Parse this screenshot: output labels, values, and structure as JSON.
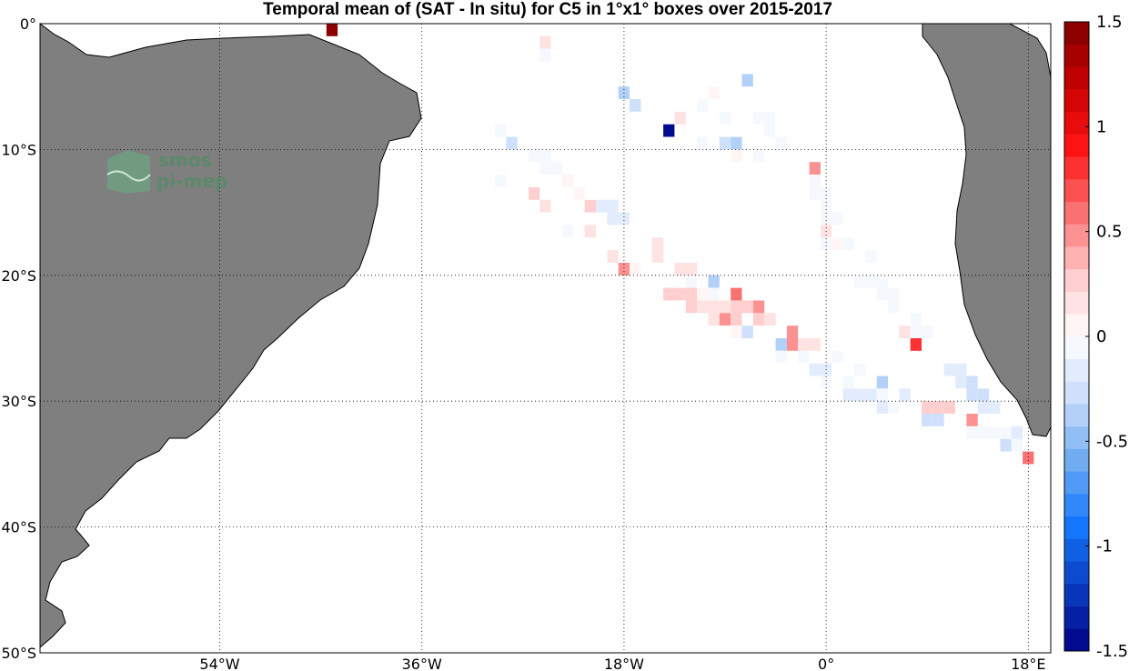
{
  "title": "Temporal mean of (SAT - In situ) for C5 in 1°x1° boxes over 2015-2017",
  "logo": {
    "line1": "smos",
    "line2": "pi-mep"
  },
  "map": {
    "lon_range": [
      -70,
      20
    ],
    "lat_range": [
      -50,
      0
    ],
    "land_color": "#7f7f7f",
    "grid": true,
    "lon_ticks": [
      {
        "value": -54,
        "label": "54°W"
      },
      {
        "value": -36,
        "label": "36°W"
      },
      {
        "value": -18,
        "label": "18°W"
      },
      {
        "value": 0,
        "label": "0°"
      },
      {
        "value": 18,
        "label": "18°E"
      }
    ],
    "lat_ticks": [
      {
        "value": 0,
        "label": "0°"
      },
      {
        "value": -10,
        "label": "10°S"
      },
      {
        "value": -20,
        "label": "20°S"
      },
      {
        "value": -30,
        "label": "30°S"
      },
      {
        "value": -40,
        "label": "40°S"
      },
      {
        "value": -50,
        "label": "50°S"
      }
    ]
  },
  "colorbar": {
    "range": [
      -1.5,
      1.5
    ],
    "ticks": [
      {
        "value": 1.5,
        "label": "1.5"
      },
      {
        "value": 1,
        "label": "1"
      },
      {
        "value": 0.5,
        "label": "0.5"
      },
      {
        "value": 0,
        "label": "0"
      },
      {
        "value": -0.5,
        "label": "-0.5"
      },
      {
        "value": -1,
        "label": "-1"
      },
      {
        "value": -1.5,
        "label": "-1.5"
      }
    ]
  },
  "chart_data": {
    "type": "heatmap",
    "value_label": "SAT - In situ",
    "cells": [
      {
        "lon": -44,
        "lat": -0.5,
        "v": 1.5
      },
      {
        "lon": -25,
        "lat": -1.5,
        "v": 0.15
      },
      {
        "lon": -25,
        "lat": -2.5,
        "v": -0.1
      },
      {
        "lon": -18,
        "lat": -5.5,
        "v": -0.4
      },
      {
        "lon": -17,
        "lat": -6.5,
        "v": -0.25
      },
      {
        "lon": -14,
        "lat": -8.5,
        "v": -1.5
      },
      {
        "lon": -13,
        "lat": -7.5,
        "v": 0.15
      },
      {
        "lon": -11,
        "lat": -6.5,
        "v": -0.1
      },
      {
        "lon": -10,
        "lat": -5.5,
        "v": 0.1
      },
      {
        "lon": -7,
        "lat": -4.5,
        "v": -0.35
      },
      {
        "lon": -9,
        "lat": -7.5,
        "v": -0.1
      },
      {
        "lon": -6,
        "lat": -7.5,
        "v": -0.1
      },
      {
        "lon": -5,
        "lat": -7.5,
        "v": -0.1
      },
      {
        "lon": -5,
        "lat": -8.5,
        "v": -0.1
      },
      {
        "lon": -11,
        "lat": -9.5,
        "v": -0.1
      },
      {
        "lon": -9,
        "lat": -9.5,
        "v": -0.25
      },
      {
        "lon": -8,
        "lat": -9.5,
        "v": -0.35
      },
      {
        "lon": -8,
        "lat": -10.5,
        "v": 0.1
      },
      {
        "lon": -6,
        "lat": -10.5,
        "v": -0.1
      },
      {
        "lon": -4,
        "lat": -9.5,
        "v": -0.1
      },
      {
        "lon": -29,
        "lat": -8.5,
        "v": -0.1
      },
      {
        "lon": -28,
        "lat": -9.5,
        "v": -0.25
      },
      {
        "lon": -26,
        "lat": -10.5,
        "v": -0.1
      },
      {
        "lon": -25,
        "lat": -10.5,
        "v": -0.1
      },
      {
        "lon": -25,
        "lat": -11.5,
        "v": -0.1
      },
      {
        "lon": -24,
        "lat": -11.5,
        "v": -0.1
      },
      {
        "lon": -29,
        "lat": -12.5,
        "v": -0.1
      },
      {
        "lon": -23,
        "lat": -12.5,
        "v": 0.1
      },
      {
        "lon": -26,
        "lat": -13.5,
        "v": 0.3
      },
      {
        "lon": -22,
        "lat": -13.5,
        "v": 0.1
      },
      {
        "lon": -25,
        "lat": -14.5,
        "v": 0.15
      },
      {
        "lon": -21,
        "lat": -14.5,
        "v": 0.3
      },
      {
        "lon": -20,
        "lat": -14.5,
        "v": -0.15
      },
      {
        "lon": -19,
        "lat": -14.5,
        "v": -0.15
      },
      {
        "lon": -19,
        "lat": -15.5,
        "v": -0.15
      },
      {
        "lon": -18,
        "lat": -15.5,
        "v": -0.15
      },
      {
        "lon": -23,
        "lat": -16.5,
        "v": -0.1
      },
      {
        "lon": -21,
        "lat": -16.5,
        "v": 0.2
      },
      {
        "lon": -19,
        "lat": -18.5,
        "v": 0.15
      },
      {
        "lon": -18,
        "lat": -19.5,
        "v": 0.5
      },
      {
        "lon": -17,
        "lat": -19.5,
        "v": 0.1
      },
      {
        "lon": -15,
        "lat": -17.5,
        "v": 0.2
      },
      {
        "lon": -15,
        "lat": -18.5,
        "v": 0.2
      },
      {
        "lon": -13,
        "lat": -19.5,
        "v": 0.15
      },
      {
        "lon": -12,
        "lat": -19.5,
        "v": 0.15
      },
      {
        "lon": -12,
        "lat": -20.5,
        "v": -0.1
      },
      {
        "lon": -10,
        "lat": -20.5,
        "v": -0.4
      },
      {
        "lon": -10,
        "lat": -21.5,
        "v": -0.1
      },
      {
        "lon": -14,
        "lat": -21.5,
        "v": 0.3
      },
      {
        "lon": -13,
        "lat": -21.5,
        "v": 0.3
      },
      {
        "lon": -12,
        "lat": -21.5,
        "v": 0.3
      },
      {
        "lon": -12,
        "lat": -22.5,
        "v": 0.3
      },
      {
        "lon": -11,
        "lat": -21.5,
        "v": 0.1
      },
      {
        "lon": -11,
        "lat": -22.5,
        "v": 0.15
      },
      {
        "lon": -10,
        "lat": -22.5,
        "v": 0.15
      },
      {
        "lon": -10,
        "lat": -23.5,
        "v": 0.15
      },
      {
        "lon": -9,
        "lat": -22.5,
        "v": 0.15
      },
      {
        "lon": -9,
        "lat": -23.5,
        "v": 0.5
      },
      {
        "lon": -8,
        "lat": -21.5,
        "v": 0.6
      },
      {
        "lon": -8,
        "lat": -22.5,
        "v": 0.3
      },
      {
        "lon": -8,
        "lat": -23.5,
        "v": 0.3
      },
      {
        "lon": -8,
        "lat": -24.5,
        "v": 0.1
      },
      {
        "lon": -7,
        "lat": -22.5,
        "v": 0.3
      },
      {
        "lon": -7,
        "lat": -24.5,
        "v": -0.25
      },
      {
        "lon": -6,
        "lat": -22.5,
        "v": 0.45
      },
      {
        "lon": -6,
        "lat": -23.5,
        "v": 0.3
      },
      {
        "lon": -5,
        "lat": -23.5,
        "v": 0.15
      },
      {
        "lon": -4,
        "lat": -25.5,
        "v": -0.35
      },
      {
        "lon": -4,
        "lat": -26.5,
        "v": -0.1
      },
      {
        "lon": -3,
        "lat": -24.5,
        "v": 0.5
      },
      {
        "lon": -3,
        "lat": -25.5,
        "v": 0.5
      },
      {
        "lon": -2,
        "lat": -25.5,
        "v": 0.15
      },
      {
        "lon": -1,
        "lat": -25.5,
        "v": 0.15
      },
      {
        "lon": -2,
        "lat": -26.5,
        "v": -0.1
      },
      {
        "lon": -1,
        "lat": -27.5,
        "v": -0.15
      },
      {
        "lon": 0,
        "lat": -27.5,
        "v": -0.15
      },
      {
        "lon": 0,
        "lat": -28.5,
        "v": -0.1
      },
      {
        "lon": 1,
        "lat": -26.5,
        "v": -0.1
      },
      {
        "lon": 2,
        "lat": -28.5,
        "v": -0.1
      },
      {
        "lon": 2,
        "lat": -29.5,
        "v": -0.15
      },
      {
        "lon": 3,
        "lat": -27.5,
        "v": -0.1
      },
      {
        "lon": 3,
        "lat": -29.5,
        "v": -0.15
      },
      {
        "lon": 4,
        "lat": -29.5,
        "v": -0.15
      },
      {
        "lon": 5,
        "lat": -28.5,
        "v": -0.4
      },
      {
        "lon": 5,
        "lat": -29.5,
        "v": -0.1
      },
      {
        "lon": 5,
        "lat": -30.5,
        "v": -0.15
      },
      {
        "lon": 6,
        "lat": -30.5,
        "v": -0.1
      },
      {
        "lon": 7,
        "lat": -29.5,
        "v": -0.15
      },
      {
        "lon": -1,
        "lat": -11.5,
        "v": 0.5
      },
      {
        "lon": -1,
        "lat": -12.5,
        "v": -0.1
      },
      {
        "lon": -1,
        "lat": -13.5,
        "v": -0.1
      },
      {
        "lon": 0,
        "lat": -13.5,
        "v": -0.1
      },
      {
        "lon": 0,
        "lat": -14.5,
        "v": -0.1
      },
      {
        "lon": 0,
        "lat": -15.5,
        "v": -0.1
      },
      {
        "lon": 1,
        "lat": -15.5,
        "v": -0.1
      },
      {
        "lon": 0,
        "lat": -16.5,
        "v": 0.15
      },
      {
        "lon": 0,
        "lat": -17.5,
        "v": -0.1
      },
      {
        "lon": 1,
        "lat": -17.5,
        "v": 0.1
      },
      {
        "lon": 2,
        "lat": -17.5,
        "v": -0.1
      },
      {
        "lon": 4,
        "lat": -18.5,
        "v": -0.1
      },
      {
        "lon": 3,
        "lat": -20.5,
        "v": -0.1
      },
      {
        "lon": 4,
        "lat": -20.5,
        "v": -0.1
      },
      {
        "lon": 5,
        "lat": -20.5,
        "v": -0.1
      },
      {
        "lon": 5,
        "lat": -21.5,
        "v": -0.1
      },
      {
        "lon": 6,
        "lat": -21.5,
        "v": -0.1
      },
      {
        "lon": 6,
        "lat": -22.5,
        "v": -0.1
      },
      {
        "lon": 8,
        "lat": -23.5,
        "v": -0.1
      },
      {
        "lon": 7,
        "lat": -24.5,
        "v": 0.15
      },
      {
        "lon": 8,
        "lat": -24.5,
        "v": -0.1
      },
      {
        "lon": 9,
        "lat": -24.5,
        "v": -0.1
      },
      {
        "lon": 8,
        "lat": -25.5,
        "v": 0.8
      },
      {
        "lon": 11,
        "lat": -27.5,
        "v": -0.2
      },
      {
        "lon": 12,
        "lat": -27.5,
        "v": -0.2
      },
      {
        "lon": 12,
        "lat": -28.5,
        "v": -0.15
      },
      {
        "lon": 13,
        "lat": -28.5,
        "v": -0.25
      },
      {
        "lon": 13,
        "lat": -29.5,
        "v": -0.25
      },
      {
        "lon": 14,
        "lat": -29.5,
        "v": -0.3
      },
      {
        "lon": 14,
        "lat": -30.5,
        "v": -0.15
      },
      {
        "lon": 15,
        "lat": -30.5,
        "v": -0.15
      },
      {
        "lon": 9,
        "lat": -30.5,
        "v": 0.3
      },
      {
        "lon": 10,
        "lat": -30.5,
        "v": 0.3
      },
      {
        "lon": 11,
        "lat": -30.5,
        "v": 0.3
      },
      {
        "lon": 9,
        "lat": -31.5,
        "v": -0.3
      },
      {
        "lon": 10,
        "lat": -31.5,
        "v": -0.3
      },
      {
        "lon": 13,
        "lat": -31.5,
        "v": 0.45
      },
      {
        "lon": 13,
        "lat": -32.5,
        "v": -0.1
      },
      {
        "lon": 14,
        "lat": -32.5,
        "v": -0.1
      },
      {
        "lon": 15,
        "lat": -32.5,
        "v": -0.1
      },
      {
        "lon": 16,
        "lat": -32.5,
        "v": -0.1
      },
      {
        "lon": 17,
        "lat": -32.5,
        "v": -0.15
      },
      {
        "lon": 16,
        "lat": -33.5,
        "v": -0.25
      },
      {
        "lon": 17,
        "lat": -33.5,
        "v": -0.1
      },
      {
        "lon": 18,
        "lat": -34.5,
        "v": 0.6
      }
    ]
  }
}
